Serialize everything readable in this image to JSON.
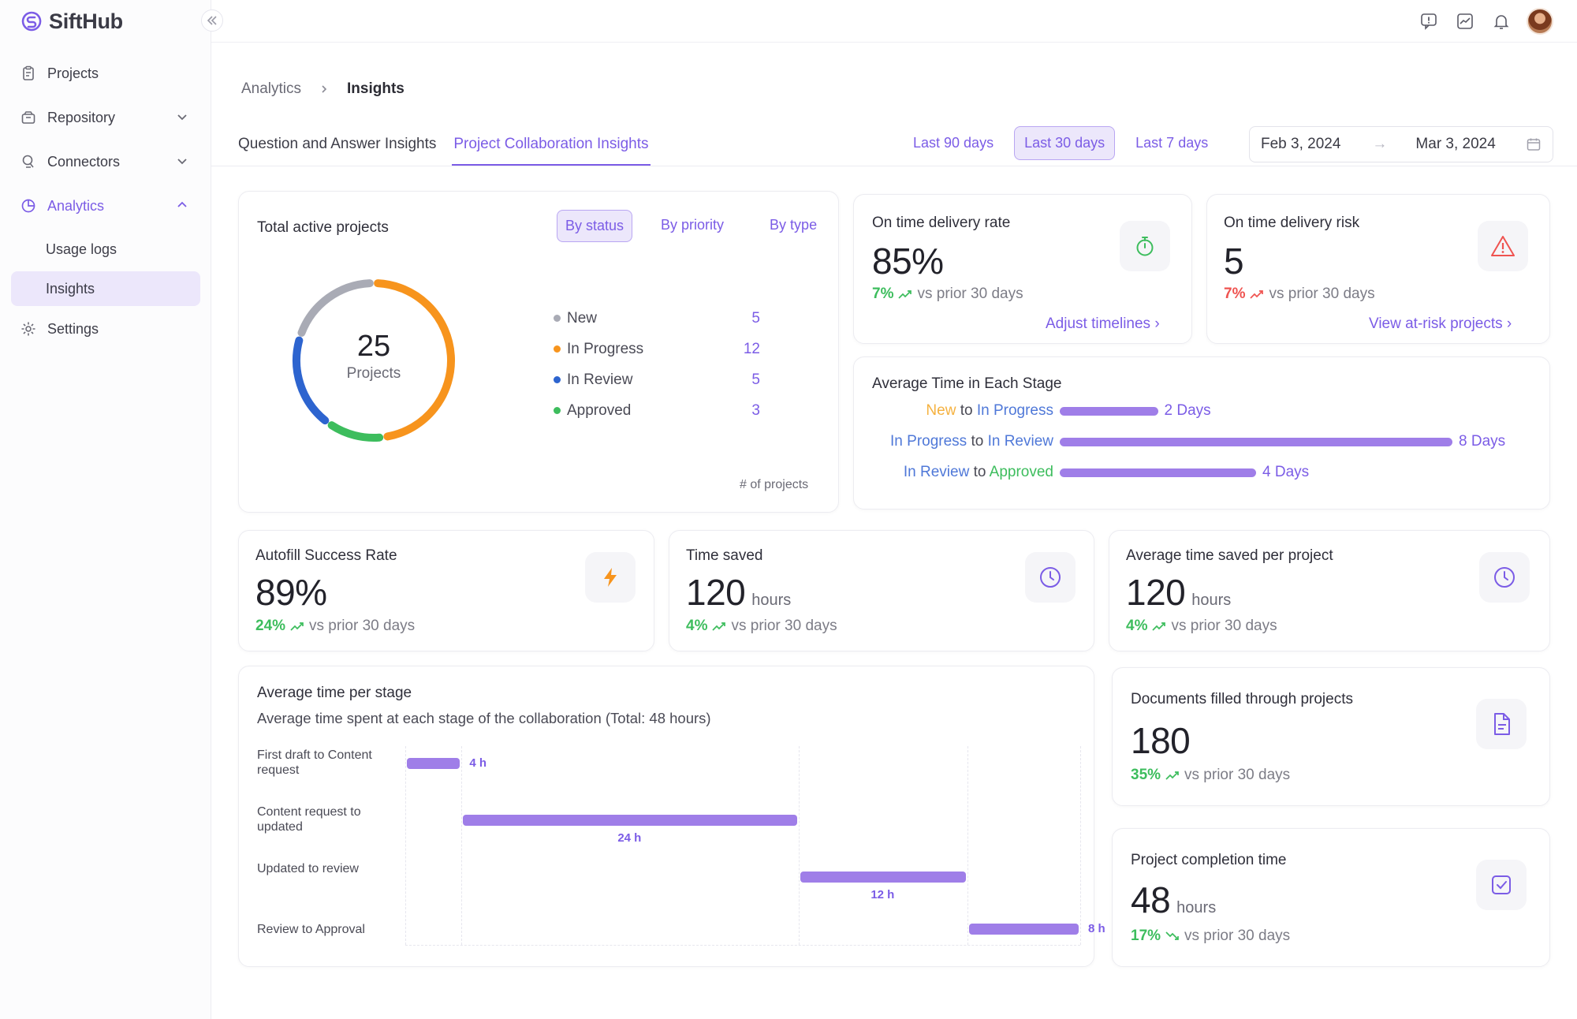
{
  "app": {
    "name": "SiftHub"
  },
  "sidebar": {
    "items": [
      {
        "label": "Projects"
      },
      {
        "label": "Repository"
      },
      {
        "label": "Connectors"
      },
      {
        "label": "Analytics"
      },
      {
        "label": "Settings"
      }
    ],
    "analytics_sub": [
      {
        "label": "Usage logs"
      },
      {
        "label": "Insights"
      }
    ]
  },
  "breadcrumb": {
    "parent": "Analytics",
    "current": "Insights"
  },
  "tabs": [
    {
      "label": "Question and Answer Insights"
    },
    {
      "label": "Project Collaboration Insights"
    }
  ],
  "date_filter": {
    "ranges": [
      {
        "label": "Last 90 days"
      },
      {
        "label": "Last 30 days"
      },
      {
        "label": "Last 7 days"
      }
    ],
    "start": "Feb 3, 2024",
    "end": "Mar 3, 2024"
  },
  "total_projects": {
    "title": "Total active projects",
    "views": [
      {
        "label": "By status"
      },
      {
        "label": "By priority"
      },
      {
        "label": "By type"
      }
    ],
    "total": "25",
    "total_label": "Projects",
    "footnote": "# of projects"
  },
  "on_time_rate": {
    "title": "On time delivery rate",
    "value": "85%",
    "change": "7%",
    "suffix": "vs prior 30 days",
    "link": "Adjust timelines ›"
  },
  "on_time_risk": {
    "title": "On time delivery risk",
    "value": "5",
    "change": "7%",
    "suffix": "vs prior 30 days",
    "link": "View at-risk projects ›"
  },
  "avg_time_stage": {
    "title": "Average Time in Each Stage",
    "rows": [
      {
        "from": "New",
        "to_word": "to",
        "to": "In Progress",
        "value": "2 Days"
      },
      {
        "from": "In Progress",
        "to_word": "to",
        "to": "In Review",
        "value": "8 Days"
      },
      {
        "from": "In Review",
        "to_word": "to",
        "to": "Approved",
        "value": "4 Days"
      }
    ]
  },
  "autofill": {
    "title": "Autofill Success Rate",
    "value": "89%",
    "change": "24%",
    "suffix": "vs prior 30 days"
  },
  "time_saved": {
    "title": "Time saved",
    "value": "120",
    "unit": "hours",
    "change": "4%",
    "suffix": "vs prior 30 days"
  },
  "avg_saved": {
    "title": "Average time saved per project",
    "value": "120",
    "unit": "hours",
    "change": "4%",
    "suffix": "vs prior 30 days"
  },
  "per_stage": {
    "title": "Average time per stage",
    "subtitle": "Average time spent at each stage of the collaboration (Total: 48 hours)"
  },
  "documents": {
    "title": "Documents filled through projects",
    "value": "180",
    "change": "35%",
    "suffix": "vs prior 30 days"
  },
  "completion": {
    "title": "Project completion time",
    "value": "48",
    "unit": "hours",
    "change": "17%",
    "suffix": "vs prior 30 days"
  },
  "chart_data": [
    {
      "type": "pie",
      "title": "Total active projects",
      "categories": [
        "New",
        "In Progress",
        "In Review",
        "Approved"
      ],
      "values": [
        5,
        12,
        5,
        3
      ],
      "colors": [
        "#a9abb5",
        "#f7941d",
        "#2d64cf",
        "#3dbd5d"
      ]
    },
    {
      "type": "bar",
      "title": "Average Time in Each Stage",
      "categories": [
        "New to In Progress",
        "In Progress to In Review",
        "In Review to Approved"
      ],
      "values": [
        2,
        8,
        4
      ],
      "unit": "Days"
    },
    {
      "type": "bar",
      "title": "Average time per stage",
      "categories": [
        "First draft to Content request",
        "Content request to updated",
        "Updated to review",
        "Review to Approval"
      ],
      "series": [
        {
          "name": "start",
          "values": [
            0,
            4,
            28,
            40
          ]
        },
        {
          "name": "duration",
          "values": [
            4,
            24,
            12,
            8
          ]
        }
      ],
      "value_labels": [
        "4 h",
        "24 h",
        "12 h",
        "8 h"
      ],
      "xlim": [
        0,
        48
      ]
    }
  ]
}
